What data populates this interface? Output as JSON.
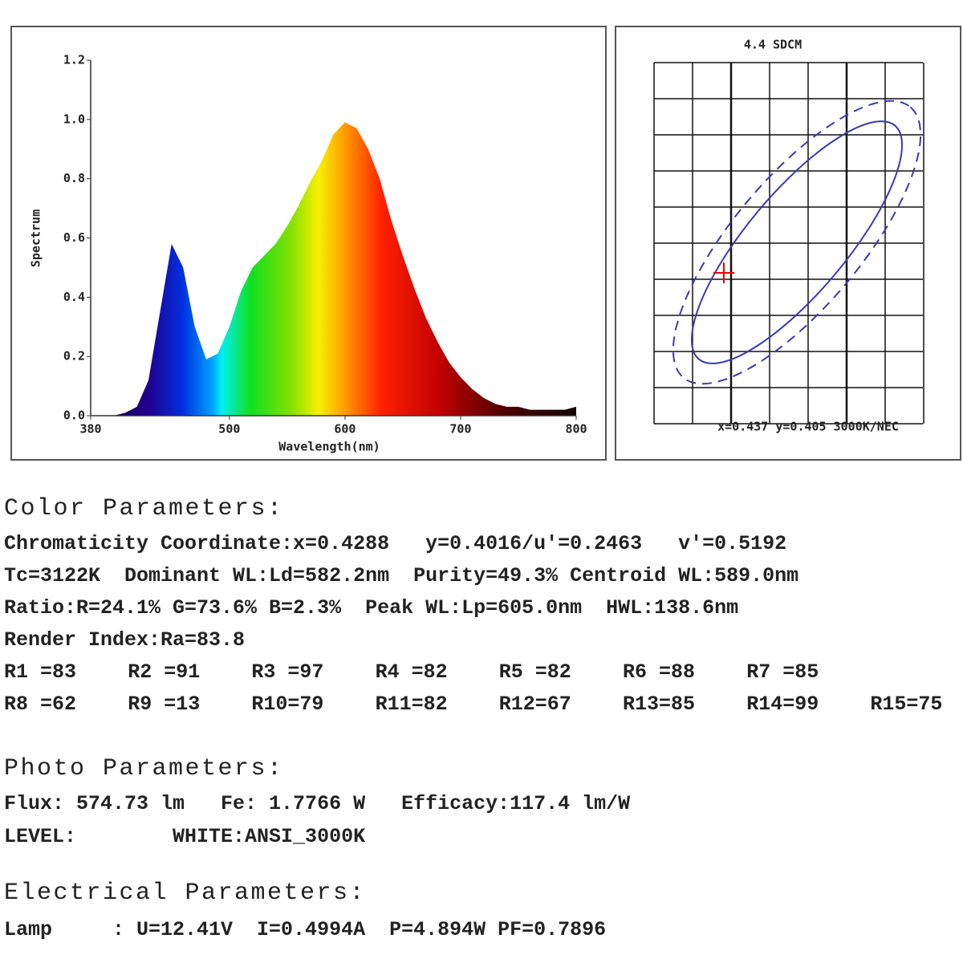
{
  "chart_data": {
    "type": "area",
    "ylabel": "Spectrum",
    "xlabel": "Wavelength(nm)",
    "x": [
      380,
      390,
      400,
      410,
      420,
      430,
      440,
      450,
      460,
      470,
      480,
      490,
      500,
      510,
      520,
      530,
      540,
      550,
      560,
      570,
      580,
      590,
      600,
      610,
      620,
      630,
      640,
      650,
      660,
      670,
      680,
      690,
      700,
      710,
      720,
      730,
      740,
      750,
      760,
      770,
      780,
      790,
      800
    ],
    "values": [
      0,
      0,
      0,
      0.01,
      0.03,
      0.12,
      0.35,
      0.58,
      0.5,
      0.3,
      0.19,
      0.21,
      0.3,
      0.42,
      0.5,
      0.54,
      0.58,
      0.64,
      0.71,
      0.79,
      0.86,
      0.95,
      0.99,
      0.97,
      0.9,
      0.8,
      0.66,
      0.54,
      0.43,
      0.33,
      0.25,
      0.18,
      0.13,
      0.09,
      0.06,
      0.04,
      0.03,
      0.03,
      0.02,
      0.02,
      0.02,
      0.02,
      0.03
    ],
    "xlim": [
      380,
      800
    ],
    "xticks": [
      380,
      500,
      600,
      700,
      800
    ],
    "ylim": [
      0,
      1.2
    ],
    "yticks": [
      {
        "value": 0,
        "label": "0.0"
      },
      {
        "value": 0.2,
        "label": "0.2"
      },
      {
        "value": 0.4,
        "label": "0.4"
      },
      {
        "value": 0.6,
        "label": "0.6"
      },
      {
        "value": 0.8,
        "label": "0.8"
      },
      {
        "value": 1,
        "label": "1.0"
      },
      {
        "value": 1.2,
        "label": "1.2"
      }
    ]
  },
  "diagram": {
    "title": "4.4 SDCM",
    "footer": "x=0.437 y=0.405 3000K/NEC"
  },
  "color_parameters": {
    "heading": "Color Parameters:",
    "lines": [
      "Chromaticity Coordinate:x=0.4288   y=0.4016/u'=0.2463   v'=0.5192",
      "Tc=3122K  Dominant WL:Ld=582.2nm  Purity=49.3% Centroid WL:589.0nm",
      "Ratio:R=24.1% G=73.6% B=2.3%  Peak WL:Lp=605.0nm  HWL:138.6nm",
      "Render Index:Ra=83.8"
    ],
    "render_indices": [
      [
        "R1 =83",
        "R2 =91",
        "R3 =97",
        "R4 =82",
        "R5 =82",
        "R6 =88",
        "R7 =85"
      ],
      [
        "R8 =62",
        "R9 =13",
        "R10=79",
        "R11=82",
        "R12=67",
        "R13=85",
        "R14=99",
        "R15=75"
      ]
    ]
  },
  "photo_parameters": {
    "heading": "Photo Parameters:",
    "lines": [
      "Flux: 574.73 lm   Fe: 1.7766 W   Efficacy:117.4 lm/W",
      "LEVEL:        WHITE:ANSI_3000K"
    ]
  },
  "electrical_parameters": {
    "heading": "Electrical Parameters:",
    "lines": [
      "Lamp     : U=12.41V  I=0.4994A  P=4.894W PF=0.7896"
    ]
  }
}
